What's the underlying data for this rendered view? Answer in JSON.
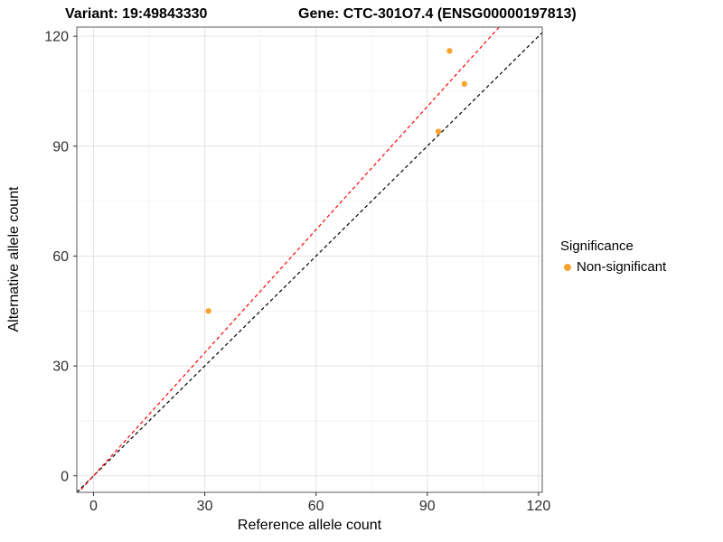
{
  "chart_data": {
    "type": "scatter",
    "title_left": "Variant: 19:49843330",
    "title_right": "Gene: CTC-301O7.4 (ENSG00000197813)",
    "xlabel": "Reference allele count",
    "ylabel": "Alternative allele count",
    "xlim": [
      -4.5,
      121
    ],
    "ylim": [
      -4.5,
      122.5
    ],
    "xticks": [
      0,
      30,
      60,
      90,
      120
    ],
    "yticks": [
      0,
      30,
      60,
      90,
      120
    ],
    "xminor": [
      15,
      45,
      75,
      105
    ],
    "yminor": [
      15,
      45,
      75,
      105
    ],
    "points": [
      {
        "x": 31,
        "y": 45
      },
      {
        "x": 93,
        "y": 94
      },
      {
        "x": 96,
        "y": 116
      },
      {
        "x": 100,
        "y": 107
      }
    ],
    "point_color": "#F8A42F",
    "lines": [
      {
        "name": "identity-line",
        "slope": 1.0,
        "intercept": 0,
        "color": "#000000"
      },
      {
        "name": "fit-line",
        "slope": 1.12,
        "intercept": 0,
        "color": "#FF0000"
      }
    ],
    "legend": {
      "title": "Significance",
      "items": [
        {
          "label": "Non-significant",
          "color": "#F8A42F"
        }
      ]
    },
    "grid": true,
    "legend_position": "right",
    "colors": {
      "grid_major": "#e3e3e3",
      "grid_minor": "#f2f2f2",
      "panel_border": "#595959",
      "tick_text": "#303030"
    }
  }
}
